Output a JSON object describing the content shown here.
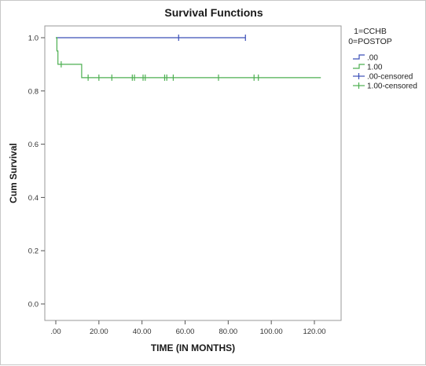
{
  "chart_data": {
    "type": "line",
    "subtype": "kaplan-meier step survival curve",
    "title": "Survival Functions",
    "xlabel": "TIME (IN MONTHS)",
    "ylabel": "Cum Survival",
    "xlim": [
      0,
      130
    ],
    "ylim": [
      0,
      1.08
    ],
    "x_ticks": [
      0,
      20,
      40,
      60,
      80,
      100,
      120
    ],
    "x_tick_labels": [
      ".00",
      "20.00",
      "40.00",
      "60.00",
      "80.00",
      "100.00",
      "120.00"
    ],
    "y_ticks": [
      0,
      0.2,
      0.4,
      0.6,
      0.8,
      1.0
    ],
    "y_tick_labels": [
      "0.0",
      "0.2",
      "0.4",
      "0.6",
      "0.8",
      "1.0"
    ],
    "grid": false,
    "legend_placement": "right",
    "legend_title_lines": [
      "1=CCHB",
      "0=POSTOP"
    ],
    "series": [
      {
        "name": ".00",
        "color": "#3b4fb8",
        "steps": [
          [
            0,
            1.0
          ],
          [
            88,
            1.0
          ]
        ],
        "censored": [
          57,
          88
        ]
      },
      {
        "name": "1.00",
        "color": "#4caf50",
        "steps": [
          [
            0,
            1.0
          ],
          [
            0.5,
            0.95
          ],
          [
            1,
            0.9
          ],
          [
            12,
            0.9
          ],
          [
            12,
            0.85
          ],
          [
            123,
            0.85
          ]
        ],
        "censored": [
          2.5,
          15,
          20,
          26,
          35.5,
          36.5,
          40.5,
          41.5,
          50.5,
          51.5,
          54.5,
          75.5,
          92,
          94
        ]
      }
    ],
    "legend": [
      {
        "label": ".00",
        "kind": "line",
        "color": "#3b4fb8"
      },
      {
        "label": "1.00",
        "kind": "line",
        "color": "#4caf50"
      },
      {
        "label": ".00-censored",
        "kind": "censor",
        "color": "#3b4fb8"
      },
      {
        "label": "1.00-censored",
        "kind": "censor",
        "color": "#4caf50"
      }
    ]
  }
}
